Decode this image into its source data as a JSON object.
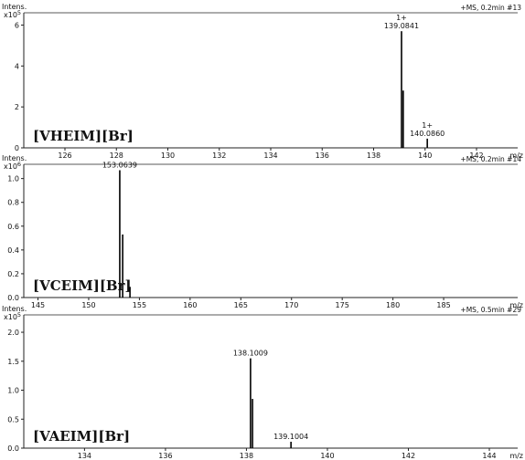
{
  "chart_data": [
    {
      "type": "bar",
      "compound_label": "[VHEIM][Br]",
      "scan_info": "+MS, 0.2min #13",
      "ylabel": "Intens.",
      "y_exponent_label": "x10",
      "y_exponent": "5",
      "xlabel": "m/z",
      "xlim": [
        124.4,
        143.6
      ],
      "ylim": [
        0,
        6.6
      ],
      "x_ticks": [
        126,
        128,
        130,
        132,
        134,
        136,
        138,
        140,
        142
      ],
      "y_ticks": [
        0,
        2,
        4,
        6
      ],
      "peaks": [
        {
          "mz": 139.0841,
          "intensity": 5.7,
          "label": "139.0841",
          "charge": "1+"
        },
        {
          "mz": 140.086,
          "intensity": 0.45,
          "label": "140.0860",
          "charge": "1+"
        },
        {
          "mz": 139.15,
          "intensity": 2.8,
          "label": "",
          "charge": ""
        }
      ]
    },
    {
      "type": "bar",
      "compound_label": "[VCEIM][Br]",
      "scan_info": "+MS, 0.2min #14",
      "ylabel": "Intens.",
      "y_exponent_label": "x10",
      "y_exponent": "6",
      "xlabel": "m/z",
      "xlim": [
        143.6,
        192.3
      ],
      "ylim": [
        0,
        1.12
      ],
      "x_ticks": [
        145,
        150,
        155,
        160,
        165,
        170,
        175,
        180,
        185
      ],
      "y_ticks": [
        0.0,
        0.2,
        0.4,
        0.6,
        0.8,
        1.0
      ],
      "y_tick_labels": [
        "0.0",
        "0.2",
        "0.4",
        "0.6",
        "0.8",
        "1.0"
      ],
      "peaks": [
        {
          "mz": 153.0639,
          "intensity": 1.07,
          "label": "153.0639",
          "charge": ""
        },
        {
          "mz": 153.35,
          "intensity": 0.53,
          "label": "",
          "charge": ""
        },
        {
          "mz": 154.07,
          "intensity": 0.09,
          "label": "",
          "charge": ""
        }
      ]
    },
    {
      "type": "bar",
      "compound_label": "[VAEIM][Br]",
      "scan_info": "+MS, 0.5min #29",
      "ylabel": "Intens.",
      "y_exponent_label": "x10",
      "y_exponent": "5",
      "xlabel": "m/z",
      "xlim": [
        132.5,
        144.7
      ],
      "ylim": [
        0,
        2.3
      ],
      "x_ticks": [
        134,
        136,
        138,
        140,
        142,
        144
      ],
      "y_ticks": [
        0.0,
        0.5,
        1.0,
        1.5,
        2.0
      ],
      "y_tick_labels": [
        "0.0",
        "0.5",
        "1.0",
        "1.5",
        "2.0"
      ],
      "peaks": [
        {
          "mz": 138.1009,
          "intensity": 1.55,
          "label": "138.1009",
          "charge": ""
        },
        {
          "mz": 138.15,
          "intensity": 0.85,
          "label": "",
          "charge": ""
        },
        {
          "mz": 139.1004,
          "intensity": 0.11,
          "label": "139.1004",
          "charge": ""
        }
      ]
    }
  ]
}
